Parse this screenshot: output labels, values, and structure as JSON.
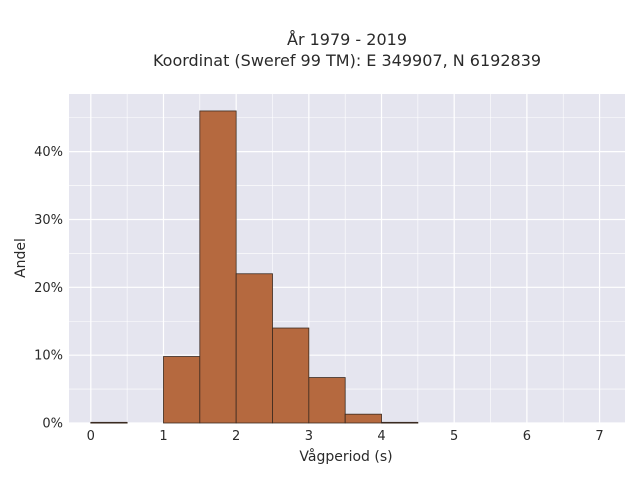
{
  "chart_data": {
    "type": "bar",
    "title_lines": [
      "År 1979 - 2019",
      "Koordinat (Sweref 99 TM): E 349907, N 6192839"
    ],
    "xlabel": "Vågperiod (s)",
    "ylabel": "Andel",
    "xlim": [
      -0.3,
      7.35
    ],
    "ylim": [
      0,
      48.5
    ],
    "x_ticks": [
      0,
      1,
      2,
      3,
      4,
      5,
      6,
      7
    ],
    "x_tick_labels": [
      "0",
      "1",
      "2",
      "3",
      "4",
      "5",
      "6",
      "7"
    ],
    "y_ticks": [
      0,
      10,
      20,
      30,
      40
    ],
    "y_tick_labels": [
      "0%",
      "10%",
      "20%",
      "30%",
      "40%"
    ],
    "bin_width": 0.5,
    "bins": [
      {
        "x0": 0.0,
        "x1": 0.5,
        "value": 0.1
      },
      {
        "x0": 0.5,
        "x1": 1.0,
        "value": 0.0
      },
      {
        "x0": 1.0,
        "x1": 1.5,
        "value": 9.8
      },
      {
        "x0": 1.5,
        "x1": 2.0,
        "value": 46.0
      },
      {
        "x0": 2.0,
        "x1": 2.5,
        "value": 22.0
      },
      {
        "x0": 2.5,
        "x1": 3.0,
        "value": 14.0
      },
      {
        "x0": 3.0,
        "x1": 3.5,
        "value": 6.7
      },
      {
        "x0": 3.5,
        "x1": 4.0,
        "value": 1.3
      },
      {
        "x0": 4.0,
        "x1": 4.5,
        "value": 0.1
      },
      {
        "x0": 4.5,
        "x1": 5.0,
        "value": 0.0
      },
      {
        "x0": 5.0,
        "x1": 5.5,
        "value": 0.0
      },
      {
        "x0": 5.5,
        "x1": 6.0,
        "value": 0.0
      },
      {
        "x0": 6.0,
        "x1": 6.5,
        "value": 0.0
      },
      {
        "x0": 6.5,
        "x1": 7.0,
        "value": 0.0
      }
    ],
    "grid": true,
    "legend": "none",
    "colors": {
      "bar_fill": "#b5693f",
      "bar_edge": "#3a2a20",
      "plot_background": "#e5e5ef",
      "grid": "#ffffff"
    }
  }
}
